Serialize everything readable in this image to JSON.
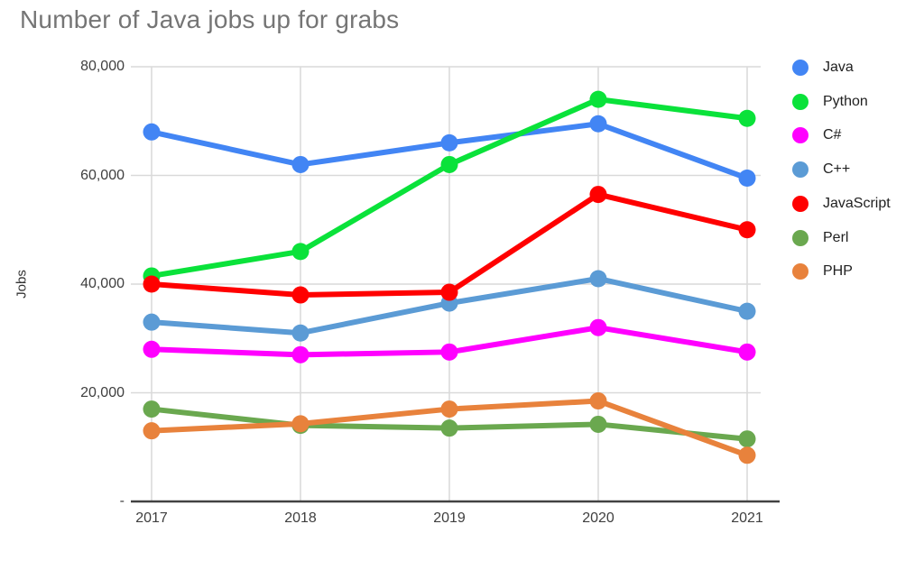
{
  "title": "Number of Java jobs up for grabs",
  "colors": {
    "title_text": "#757575",
    "axis_text": "#3f3f3f",
    "gridline": "#d9d9d9",
    "axis_line": "#424242",
    "background": "#ffffff"
  },
  "chart_data": {
    "type": "line",
    "title": "Number of Java jobs up for grabs",
    "xlabel": "",
    "ylabel": "Jobs",
    "x": [
      "2017",
      "2018",
      "2019",
      "2020",
      "2021"
    ],
    "series": [
      {
        "name": "Java",
        "color": "#4285F4",
        "values": [
          68000,
          62000,
          66000,
          69500,
          59500
        ]
      },
      {
        "name": "Python",
        "color": "#0AE23A",
        "values": [
          41500,
          46000,
          62000,
          74000,
          70500
        ]
      },
      {
        "name": "C#",
        "color": "#FF00FF",
        "values": [
          28000,
          27000,
          27500,
          32000,
          27500
        ]
      },
      {
        "name": "C++",
        "color": "#5B9BD5",
        "values": [
          33000,
          31000,
          36500,
          41000,
          35000
        ]
      },
      {
        "name": "JavaScript",
        "color": "#FF0000",
        "values": [
          40000,
          38000,
          38500,
          56500,
          50000
        ]
      },
      {
        "name": "Perl",
        "color": "#6AA84F",
        "values": [
          17000,
          14000,
          13500,
          14200,
          11500
        ]
      },
      {
        "name": "PHP",
        "color": "#E8823C",
        "values": [
          13000,
          14300,
          17000,
          18500,
          8500
        ]
      }
    ],
    "ylim": [
      0,
      80000
    ],
    "yticks": [
      {
        "value": 0,
        "label": "-"
      },
      {
        "value": 20000,
        "label": "20,000"
      },
      {
        "value": 40000,
        "label": "40,000"
      },
      {
        "value": 60000,
        "label": "60,000"
      },
      {
        "value": 80000,
        "label": "80,000"
      }
    ],
    "grid": true,
    "legend_position": "right"
  }
}
